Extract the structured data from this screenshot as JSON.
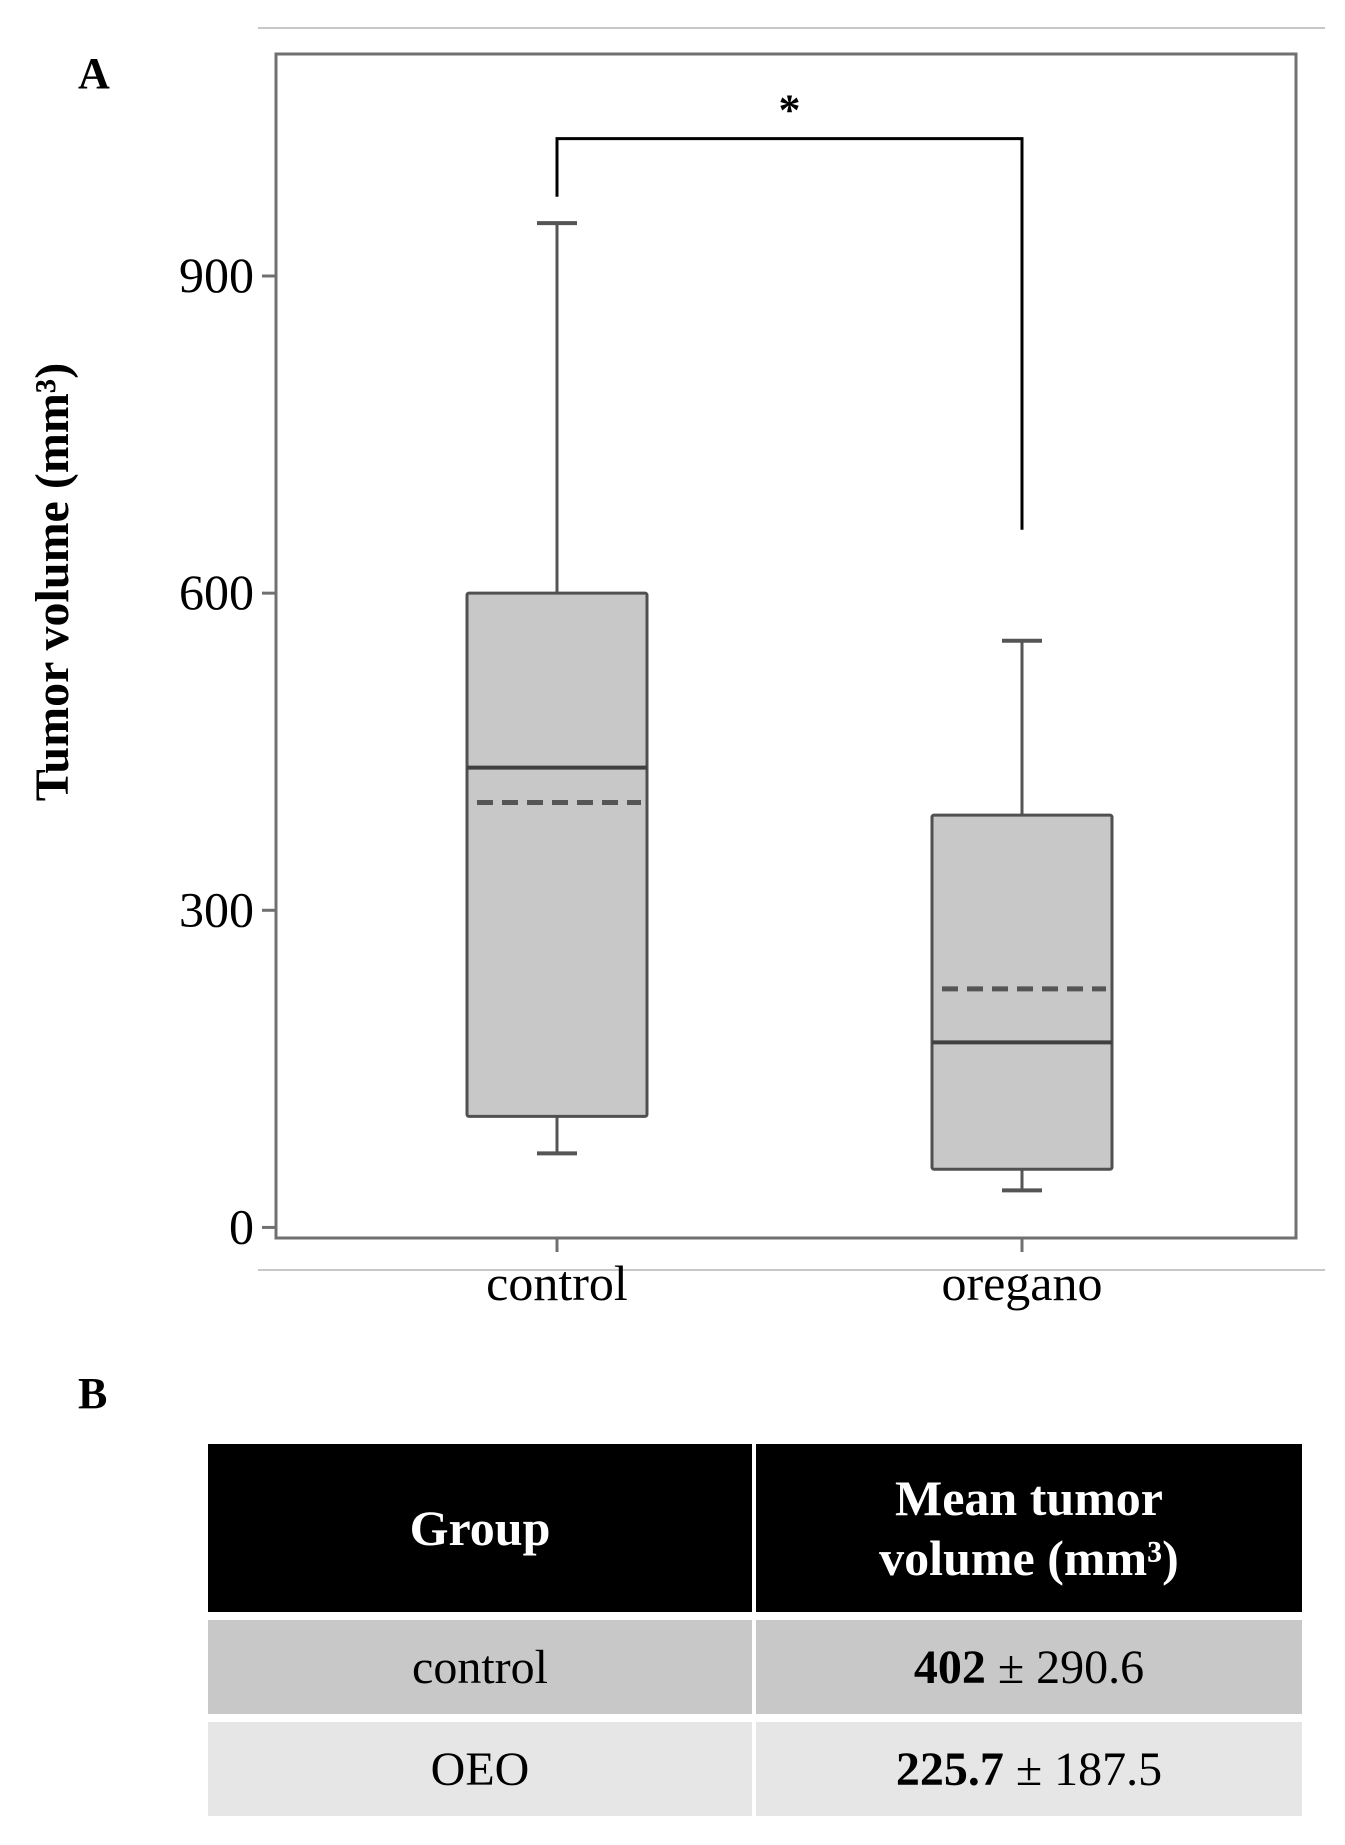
{
  "panel_a_label": "A",
  "panel_b_label": "B",
  "chart_data": {
    "type": "box",
    "ylabel": "Tumor volume (mm³)",
    "ylim": [
      -10,
      1110
    ],
    "yticks": [
      0,
      300,
      600,
      900
    ],
    "categories": [
      "control",
      "oregano"
    ],
    "boxes": [
      {
        "name": "control",
        "whisker_low": 70,
        "q1": 105,
        "median": 435,
        "mean": 402,
        "q3": 600,
        "whisker_high": 950
      },
      {
        "name": "oregano",
        "whisker_low": 35,
        "q1": 55,
        "median": 175,
        "mean": 225.7,
        "q3": 390,
        "whisker_high": 555
      }
    ],
    "significance": {
      "label": "*",
      "between": [
        "control",
        "oregano"
      ],
      "bracket_y": 1030,
      "left_end": 975,
      "right_end": 660
    }
  },
  "table": {
    "headers": [
      "Group",
      "Mean tumor volume (mm³)"
    ],
    "rows": [
      {
        "group": "control",
        "mean": "402",
        "sd": " ± 290.6"
      },
      {
        "group": "OEO",
        "mean": "225.7",
        "sd": " ± 187.5"
      }
    ]
  }
}
